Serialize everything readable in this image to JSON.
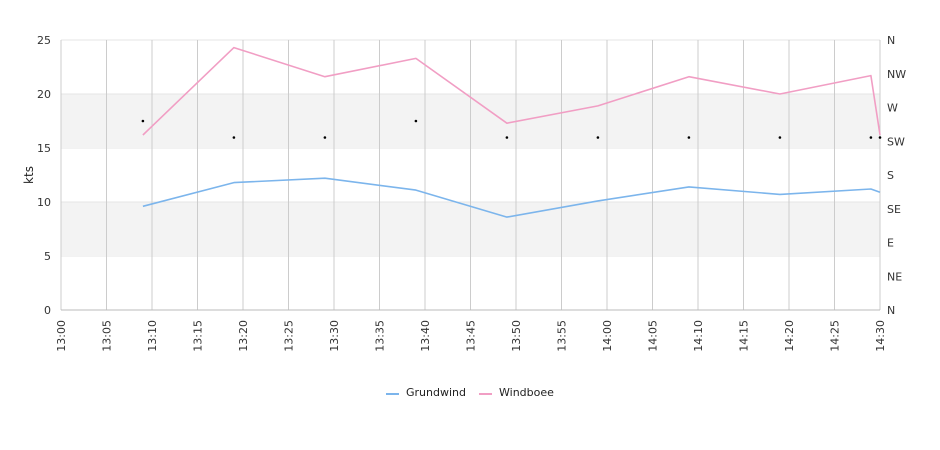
{
  "chart_data": {
    "type": "line",
    "title": "",
    "xlabel": "",
    "ylabel": "kts",
    "ylim": [
      0,
      25
    ],
    "y_ticks": [
      "0",
      "5",
      "10",
      "15",
      "20",
      "25"
    ],
    "x_ticks": [
      "13:00",
      "13:05",
      "13:10",
      "13:15",
      "13:20",
      "13:25",
      "13:30",
      "13:35",
      "13:40",
      "13:45",
      "13:50",
      "13:55",
      "14:00",
      "14:05",
      "14:10",
      "14:15",
      "14:20",
      "14:25",
      "14:30"
    ],
    "y2_ticks": [
      "N",
      "NE",
      "E",
      "SE",
      "S",
      "SW",
      "W",
      "NW",
      "N"
    ],
    "y2_range_degrees": [
      0,
      360
    ],
    "grid": {
      "vertical": true,
      "horizontal_bands": true
    },
    "legend_position": "bottom-center",
    "series": [
      {
        "name": "Grundwind",
        "color": "#7cb5ec",
        "x": [
          "13:09",
          "13:19",
          "13:29",
          "13:39",
          "13:49",
          "13:59",
          "14:09",
          "14:19",
          "14:29",
          "14:30"
        ],
        "values": [
          9.6,
          11.8,
          12.2,
          11.1,
          8.6,
          10.1,
          11.4,
          10.7,
          11.2,
          10.9
        ]
      },
      {
        "name": "Windboee",
        "color": "#f19ec4",
        "x": [
          "13:09",
          "13:19",
          "13:29",
          "13:39",
          "13:49",
          "13:59",
          "14:09",
          "14:19",
          "14:29",
          "14:30"
        ],
        "values": [
          16.2,
          24.3,
          21.6,
          23.3,
          17.3,
          18.9,
          21.6,
          20.0,
          21.7,
          16.2
        ]
      }
    ],
    "direction": {
      "color": "#000000",
      "x": [
        "13:09",
        "13:19",
        "13:29",
        "13:39",
        "13:49",
        "13:59",
        "14:09",
        "14:19",
        "14:29",
        "14:30"
      ],
      "degrees": [
        252,
        230,
        230,
        252,
        230,
        230,
        230,
        230,
        230,
        230
      ]
    }
  }
}
